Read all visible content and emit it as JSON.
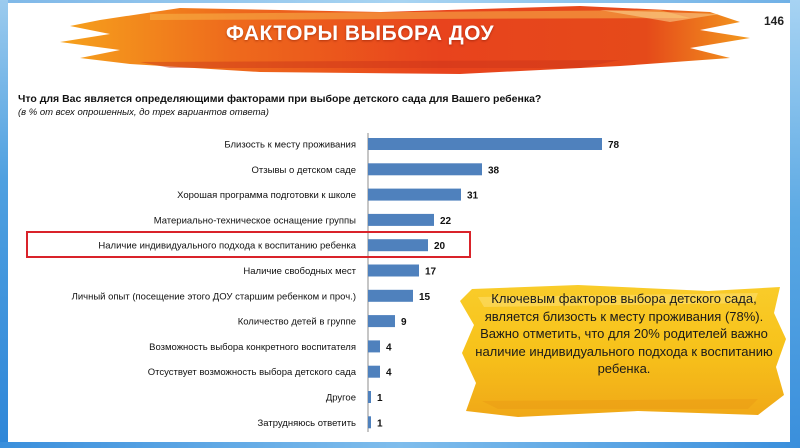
{
  "header": {
    "title": "ФАКТОРЫ ВЫБОРА ДОУ",
    "page_number": "146"
  },
  "survey": {
    "question": "Что для Вас является определяющими факторами при выборе детского сада для Вашего ребенка?",
    "note": "(в % от всех опрошенных, до трех вариантов ответа)"
  },
  "callout": {
    "text": "Ключевым факторов выбора детского сада, является близость к месту проживания (78%). Важно отметить, что для 20% родителей важно наличие индивидуального подхода к воспитанию ребенка."
  },
  "colors": {
    "bar": "#4f81bd",
    "highlight": "#d9232a",
    "banner": "#e8431d",
    "callout": "#f7c21a"
  },
  "chart_data": {
    "type": "bar",
    "orientation": "horizontal",
    "categories": [
      "Близость к месту проживания",
      "Отзывы о детском саде",
      "Хорошая программа подготовки к школе",
      "Материально-техническое оснащение группы",
      "Наличие индивидуального подхода к воспитанию ребенка",
      "Наличие свободных мест",
      "Личный опыт (посещение этого ДОУ старшим ребенком и проч.)",
      "Количество детей в группе",
      "Возможность выбора конкретного воспитателя",
      "Отсуствует возможность выбора детского сада",
      "Другое",
      "Затрудняюсь ответить"
    ],
    "values": [
      78,
      38,
      31,
      22,
      20,
      17,
      15,
      9,
      4,
      4,
      1,
      1
    ],
    "highlighted_category": "Наличие индивидуального подхода к воспитанию ребенка",
    "xlim": [
      0,
      100
    ],
    "grid": false,
    "legend": "none"
  }
}
